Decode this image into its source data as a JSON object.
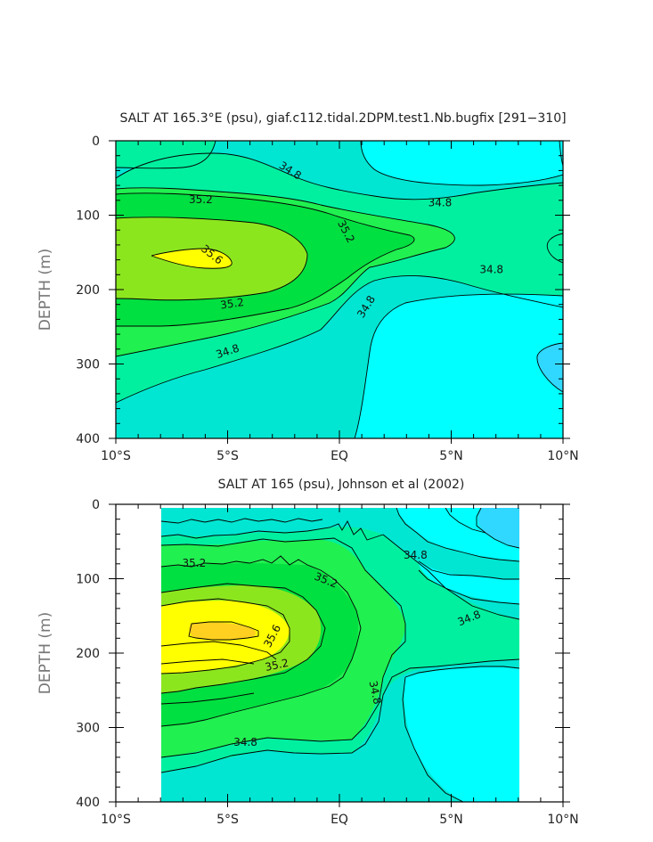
{
  "palette": {
    "lt_34_6": "#00ffff",
    "c34_6_34_8": "#00e6d2",
    "c34_8_35_0": "#00f0a0",
    "c35_0_35_2": "#20f050",
    "c35_2_35_4": "#00e040",
    "c35_4_35_6": "#8ce61e",
    "gt_35_6": "#ffff00",
    "fresh_pocket": "#30d8ff",
    "hot_core": "#ffd020",
    "contour_line": "#000000"
  },
  "chart_data": [
    {
      "type": "heatmap",
      "title": "SALT AT 165.3°E (psu), giaf.c112.tidal.2DPM.test1.Nb.bugfix [291−310]",
      "xlabel": "",
      "ylabel": "DEPTH (m)",
      "xlim": [
        -10,
        10
      ],
      "ylim": [
        400,
        0
      ],
      "x_ticks": [
        -10,
        -5,
        0,
        5,
        10
      ],
      "x_tick_labels": [
        "10°S",
        "5°S",
        "EQ",
        "5°N",
        "10°N"
      ],
      "y_ticks": [
        0,
        100,
        200,
        300,
        400
      ],
      "y_tick_labels": [
        "0",
        "100",
        "200",
        "300",
        "400"
      ],
      "data_extent_lat": [
        -10,
        10
      ],
      "contour_labels": [
        {
          "text": "34.8",
          "lat": -2.2,
          "depth": 40,
          "angle": 32
        },
        {
          "text": "34.8",
          "lat": 4.5,
          "depth": 83,
          "angle": 0
        },
        {
          "text": "35.2",
          "lat": -6.2,
          "depth": 79,
          "angle": 0
        },
        {
          "text": "35.2",
          "lat": 0.3,
          "depth": 122,
          "angle": 62
        },
        {
          "text": "35.6",
          "lat": -5.7,
          "depth": 153,
          "angle": 38
        },
        {
          "text": "34.8",
          "lat": 6.8,
          "depth": 173,
          "angle": 0
        },
        {
          "text": "35.2",
          "lat": -4.8,
          "depth": 219,
          "angle": -8
        },
        {
          "text": "34.8",
          "lat": 1.2,
          "depth": 223,
          "angle": -58
        },
        {
          "text": "34.8",
          "lat": -5.0,
          "depth": 283,
          "angle": -18
        }
      ]
    },
    {
      "type": "heatmap",
      "title": "SALT AT 165 (psu), Johnson et al (2002)",
      "xlabel": "",
      "ylabel": "DEPTH (m)",
      "xlim": [
        -10,
        10
      ],
      "ylim": [
        400,
        0
      ],
      "x_ticks": [
        -10,
        -5,
        0,
        5,
        10
      ],
      "x_tick_labels": [
        "10°S",
        "5°S",
        "EQ",
        "5°N",
        "10°N"
      ],
      "y_ticks": [
        0,
        100,
        200,
        300,
        400
      ],
      "y_tick_labels": [
        "0",
        "100",
        "200",
        "300",
        "400"
      ],
      "data_extent_lat": [
        -8,
        8
      ],
      "contour_labels": [
        {
          "text": "35.2",
          "lat": -6.5,
          "depth": 79,
          "angle": 0
        },
        {
          "text": "34.8",
          "lat": 3.4,
          "depth": 68,
          "angle": 0
        },
        {
          "text": "35.2",
          "lat": -0.6,
          "depth": 102,
          "angle": 22
        },
        {
          "text": "35.6",
          "lat": -3.0,
          "depth": 177,
          "angle": -62
        },
        {
          "text": "34.8",
          "lat": 5.8,
          "depth": 153,
          "angle": -22
        },
        {
          "text": "35.2",
          "lat": -2.8,
          "depth": 216,
          "angle": -12
        },
        {
          "text": "34.8",
          "lat": 1.6,
          "depth": 253,
          "angle": 78
        },
        {
          "text": "34.8",
          "lat": -4.2,
          "depth": 320,
          "angle": 0
        }
      ]
    }
  ]
}
